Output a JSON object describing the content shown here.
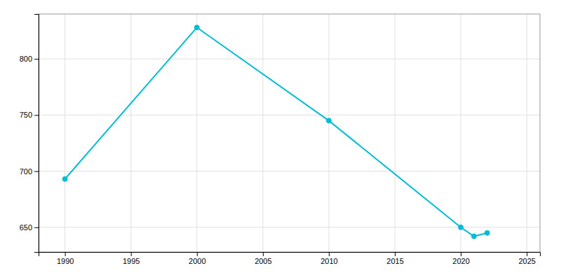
{
  "chart_data": {
    "type": "line",
    "x": [
      1990,
      2000,
      2010,
      2020,
      2021,
      2022
    ],
    "values": [
      693,
      828,
      745,
      650,
      642,
      645
    ],
    "color": "#00bcd4",
    "marker": "circle",
    "xlim": [
      1988,
      2026
    ],
    "ylim": [
      628,
      840
    ],
    "xticks": [
      1990,
      1995,
      2000,
      2005,
      2010,
      2015,
      2020,
      2025
    ],
    "yticks": [
      650,
      700,
      750,
      800
    ],
    "grid": true
  }
}
